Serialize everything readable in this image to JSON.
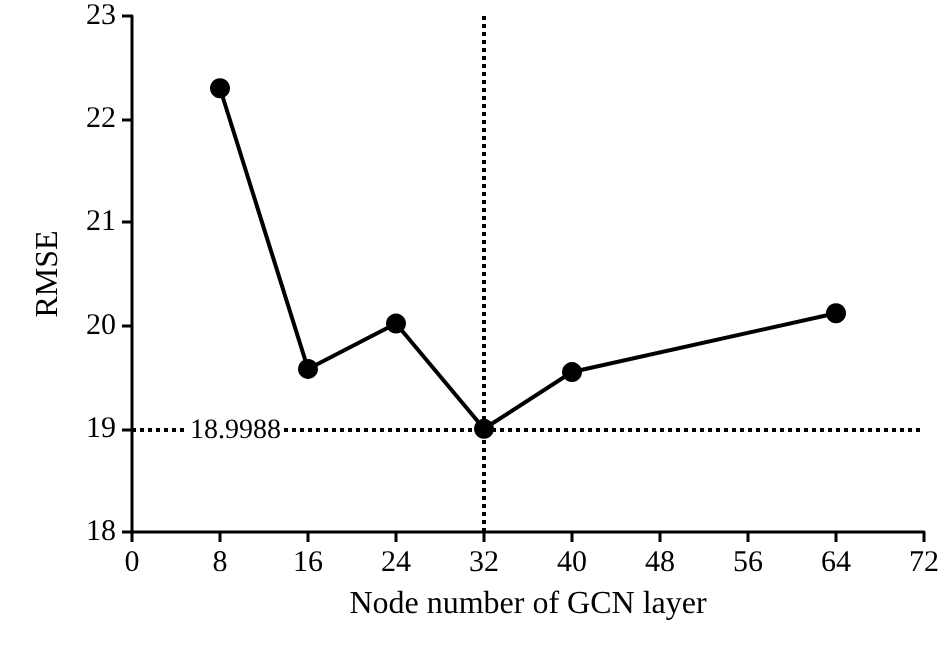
{
  "chart_data": {
    "type": "line",
    "xlabel": "Node number of GCN layer",
    "ylabel": "RMSE",
    "x": [
      8,
      16,
      24,
      32,
      40,
      64
    ],
    "series": [
      {
        "color": "#000000",
        "values": [
          22.3,
          19.58,
          20.02,
          19.0,
          19.55,
          20.12
        ]
      }
    ],
    "xlim": [
      0,
      72
    ],
    "xticks": [
      0,
      8,
      16,
      24,
      32,
      40,
      48,
      56,
      64,
      72
    ],
    "ylim": [
      18,
      23
    ],
    "yticks": [
      18,
      19,
      20,
      21,
      22,
      23
    ],
    "ref_lines": [
      {
        "axis": "x",
        "value": 32,
        "line_style": "dotted",
        "color": "#000000"
      },
      {
        "axis": "y",
        "value": 18.9988,
        "label": "18.9988",
        "line_style": "dotted",
        "color": "#000000"
      }
    ],
    "grid": false,
    "marker": "circle",
    "line_style": "solid"
  }
}
